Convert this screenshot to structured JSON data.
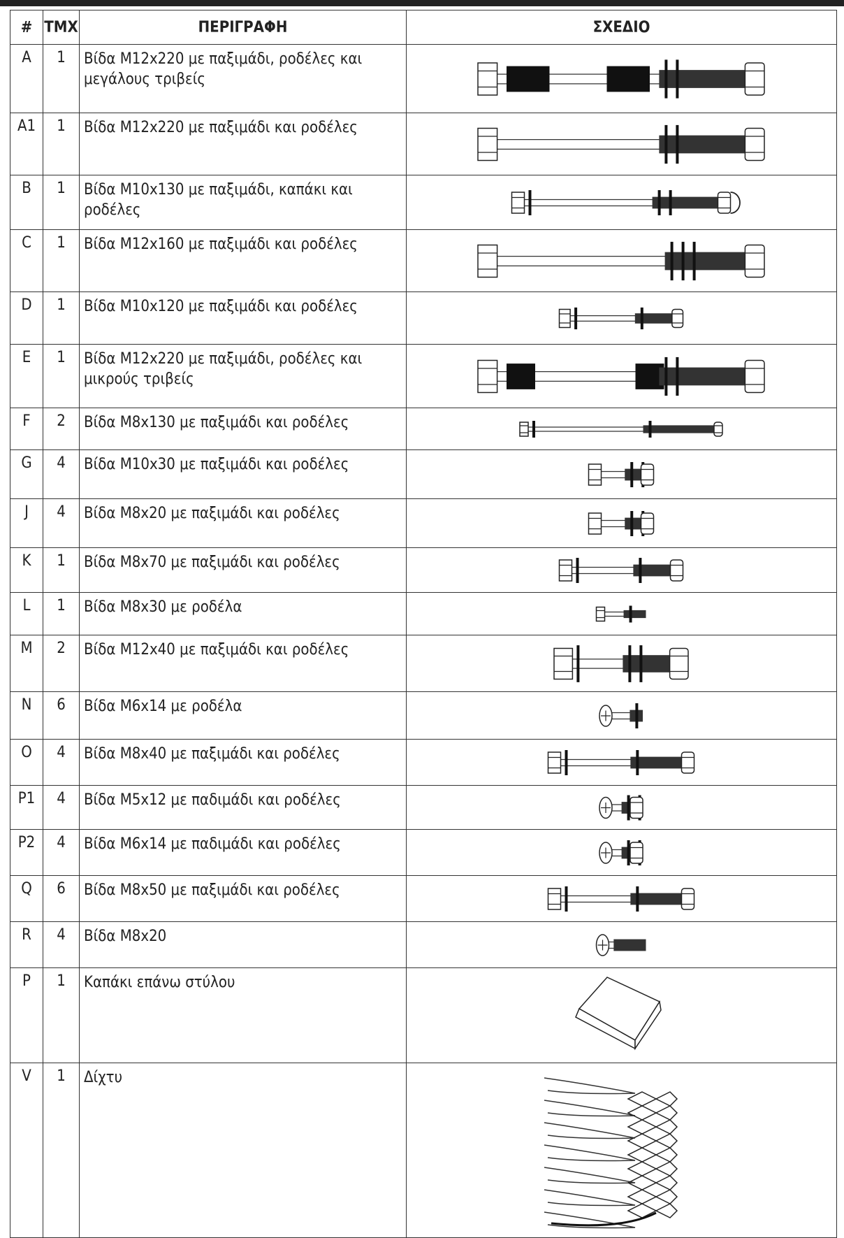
{
  "header": {
    "columns": [
      "#",
      "ΤΜΧ",
      "ΠΕΡΙΓΡΑΦΗ",
      "ΣΧΕΔΙΟ"
    ]
  },
  "table": {
    "rows": [
      [
        "A",
        1,
        "Βίδα Μ12x220 με παξιμάδι, ροδέλες και μεγάλους τριβείς"
      ],
      [
        "A1",
        1,
        "Βίδα Μ12x220 με παξιμάδι και ροδέλες"
      ],
      [
        "B",
        1,
        "Βίδα Μ10x130 με παξιμάδι, καπάκι και ροδέλες"
      ],
      [
        "C",
        1,
        "Βίδα Μ12x160 με παξιμάδι και ροδέλες"
      ],
      [
        "D",
        1,
        "Βίδα Μ10x120 με παξιμάδι και ροδέλες"
      ],
      [
        "E",
        1,
        "Βίδα Μ12x220 με παξιμάδι, ροδέλες και μικρούς τριβείς"
      ],
      [
        "F",
        2,
        "Βίδα Μ8x130 με παξιμάδι και ροδέλες"
      ],
      [
        "G",
        4,
        "Βίδα Μ10x30 με παξιμάδι και ροδέλες"
      ],
      [
        "J",
        4,
        "Βίδα Μ8x20 με παξιμάδι και ροδέλες"
      ],
      [
        "K",
        1,
        "Βίδα Μ8x70 με παξιμάδι και ροδέλες"
      ],
      [
        "L",
        1,
        "Βίδα Μ8x30 με ροδέλα"
      ],
      [
        "M",
        2,
        "Βίδα Μ12x40 με παξιμάδι και ροδέλες"
      ],
      [
        "N",
        6,
        "Βίδα Μ6x14 με ροδέλα"
      ],
      [
        "O",
        4,
        "Βίδα Μ8x40 με παξιμάδι και ροδέλες"
      ],
      [
        "P1",
        4,
        "Βίδα Μ5x12 με παδιμάδι και ροδέλες"
      ],
      [
        "P2",
        4,
        "Βίδα Μ6x14 με παδιμάδι και ροδέλες"
      ],
      [
        "Q",
        6,
        "Βίδα Μ8x50 με παξιμάδι και ροδέλες"
      ],
      [
        "R",
        4,
        "Βίδα Μ8x20"
      ],
      [
        "P",
        1,
        "Καπάκι επάνω στύλου"
      ],
      [
        "V",
        1,
        "Δίχτυ"
      ]
    ]
  }
}
